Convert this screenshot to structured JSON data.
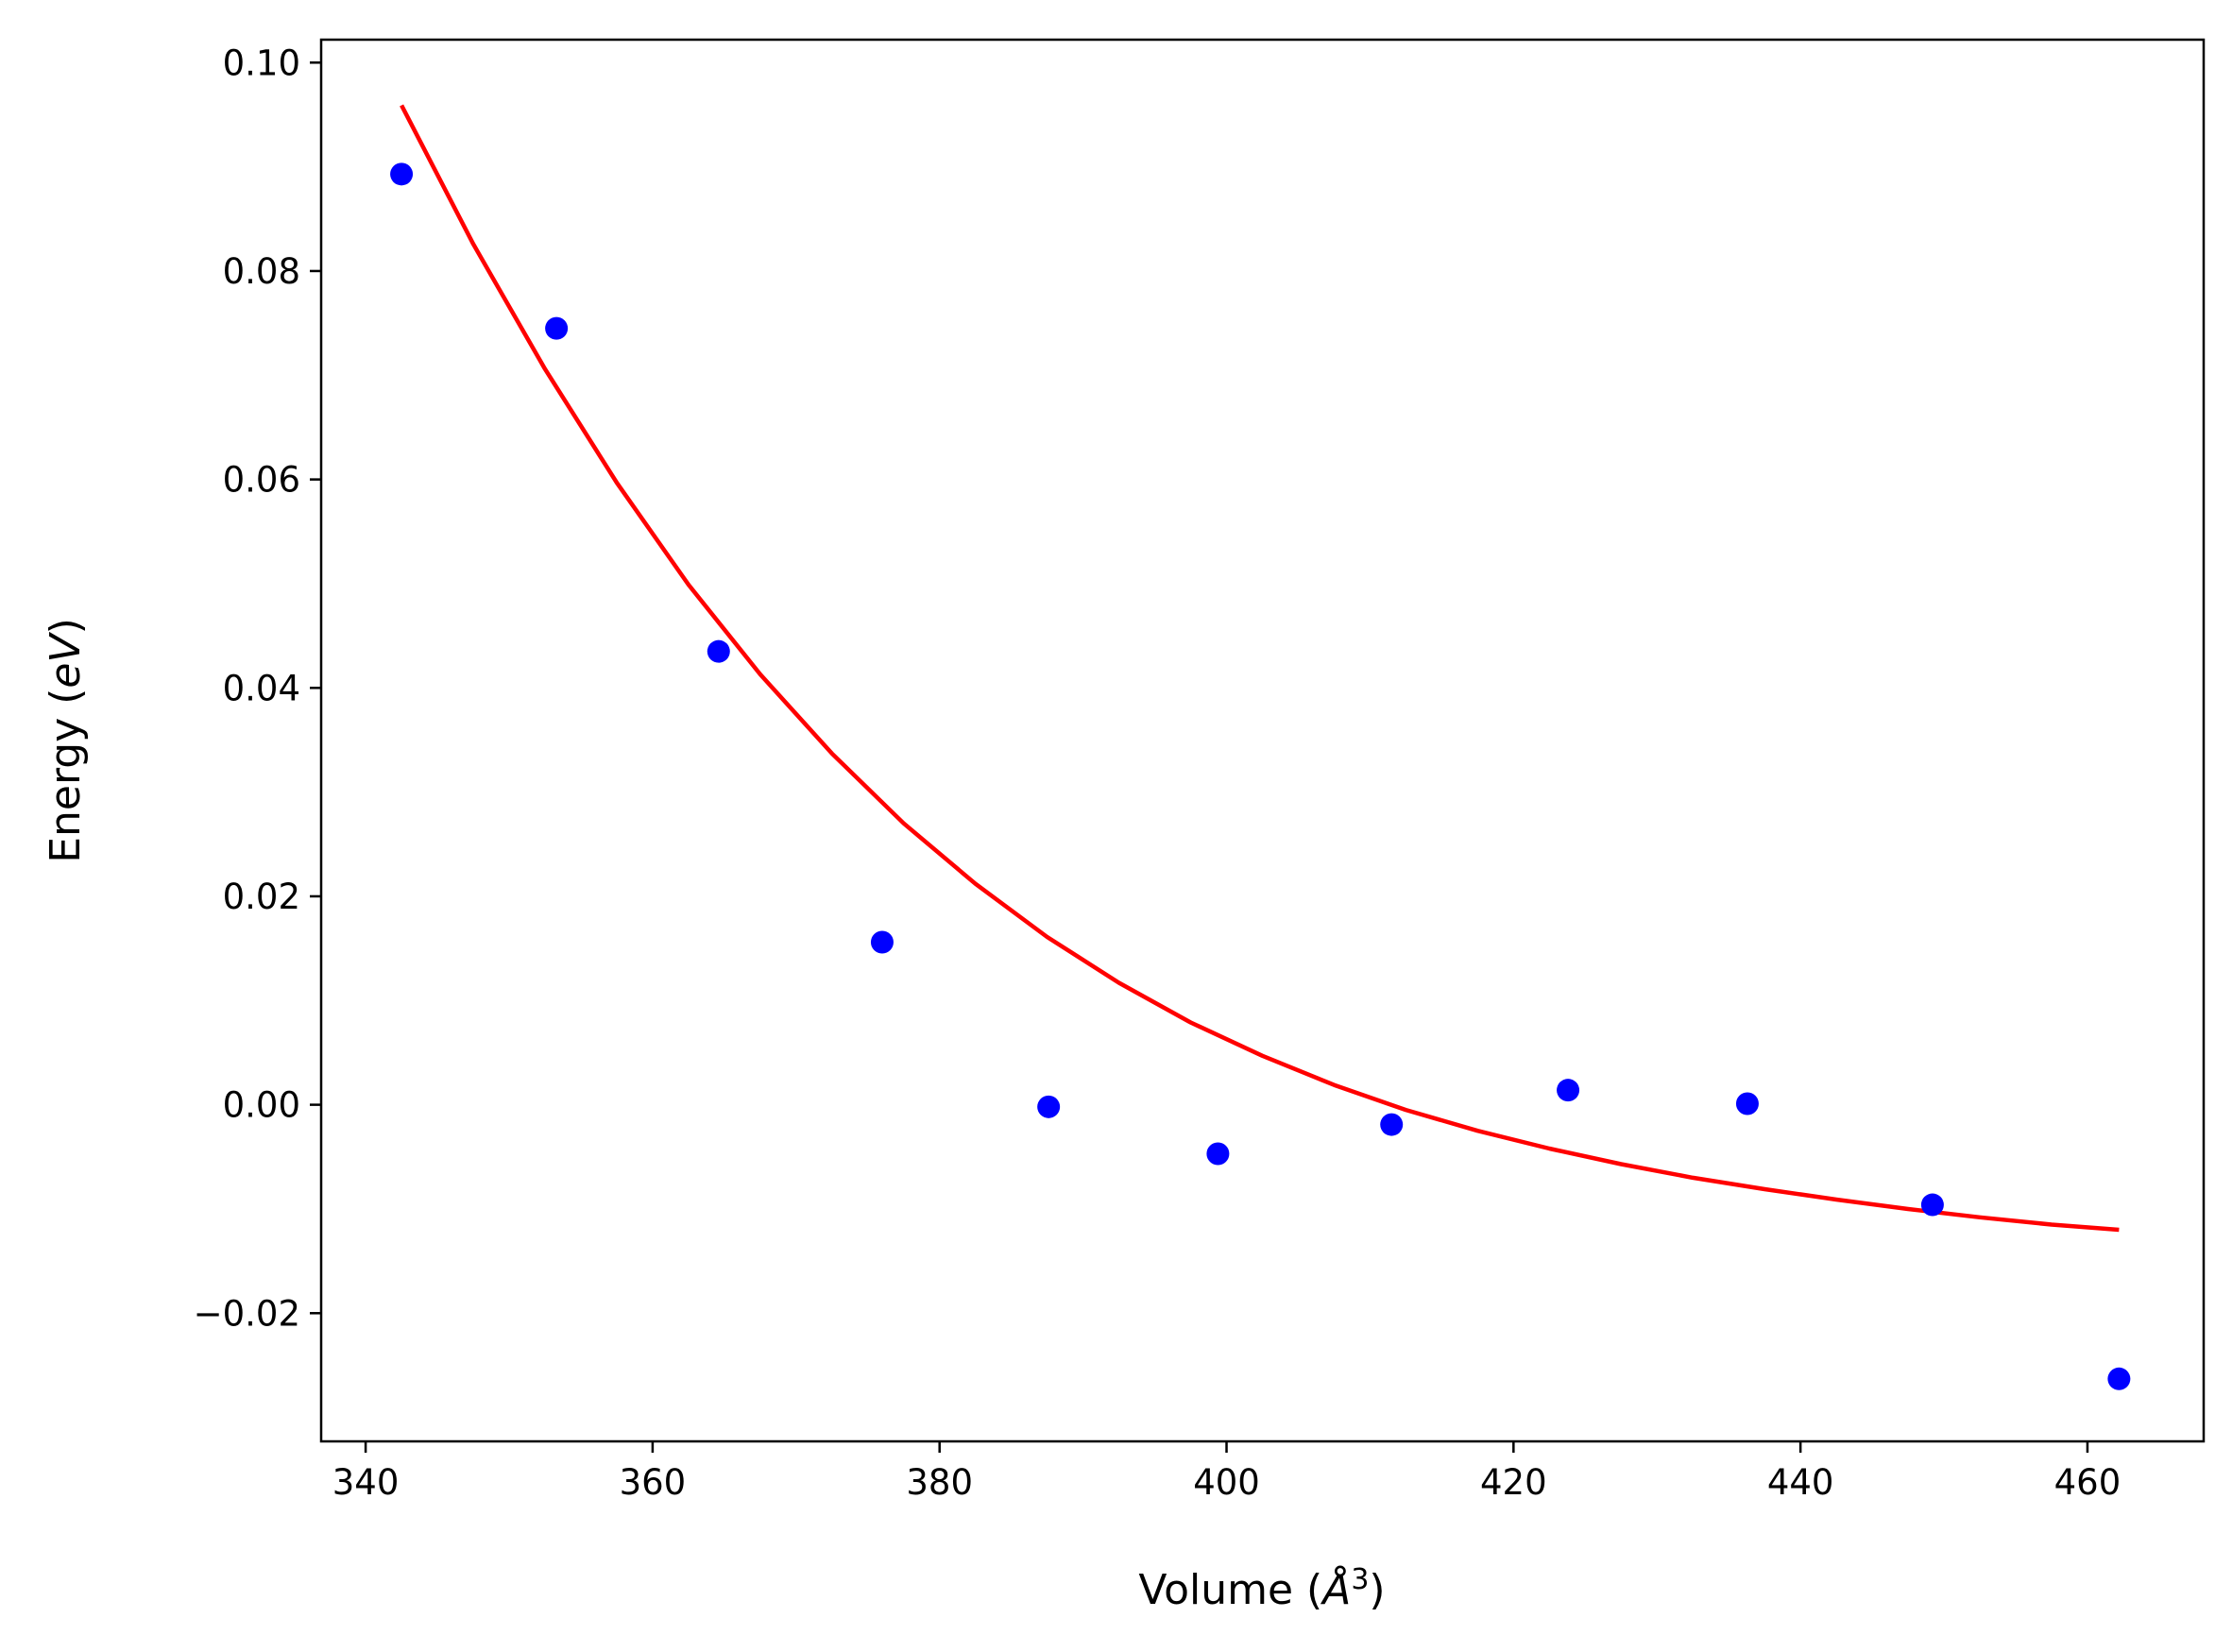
{
  "chart_data": {
    "type": "scatter",
    "xlabel": {
      "prefix": "Volume (",
      "var": "Å",
      "sup": "3",
      "suffix": ")"
    },
    "ylabel": {
      "prefix": "Energy (",
      "var": "eV",
      "suffix": ")"
    },
    "xlim": [
      336.9,
      468.1
    ],
    "ylim": [
      -0.0323,
      0.1022
    ],
    "xticks": [
      340,
      360,
      380,
      400,
      420,
      440,
      460
    ],
    "xtick_labels": [
      "340",
      "360",
      "380",
      "400",
      "420",
      "440",
      "460"
    ],
    "yticks": [
      -0.02,
      0.0,
      0.02,
      0.04,
      0.06,
      0.08,
      0.1
    ],
    "ytick_labels": [
      "−0.02",
      "0.00",
      "0.02",
      "0.04",
      "0.06",
      "0.08",
      "0.10"
    ],
    "grid": false,
    "legend": "none",
    "series": [
      {
        "kind": "points",
        "color": "#0000ff",
        "x": [
          342.5,
          353.3,
          364.6,
          376.0,
          387.6,
          399.4,
          411.5,
          423.8,
          436.3,
          449.2,
          462.2
        ],
        "y": [
          0.0893,
          0.0745,
          0.0435,
          0.0156,
          -0.0002,
          -0.0047,
          -0.0019,
          0.0014,
          0.0001,
          -0.0096,
          -0.0263
        ]
      },
      {
        "kind": "fit-line",
        "color": "#ff0000",
        "x": [
          342.5,
          347.5,
          352.5,
          357.5,
          362.5,
          367.5,
          372.5,
          377.5,
          382.5,
          387.5,
          392.5,
          397.5,
          402.5,
          407.5,
          412.5,
          417.5,
          422.5,
          427.5,
          432.5,
          437.5,
          442.5,
          447.5,
          452.5,
          457.5,
          462.2
        ],
        "y": [
          0.0959,
          0.0826,
          0.0706,
          0.0597,
          0.0499,
          0.0413,
          0.0337,
          0.027,
          0.0212,
          0.0161,
          0.0117,
          0.0079,
          0.0047,
          0.0019,
          -0.0005,
          -0.0025,
          -0.0042,
          -0.0057,
          -0.007,
          -0.0081,
          -0.0091,
          -0.01,
          -0.0108,
          -0.0115,
          -0.012
        ]
      }
    ]
  }
}
